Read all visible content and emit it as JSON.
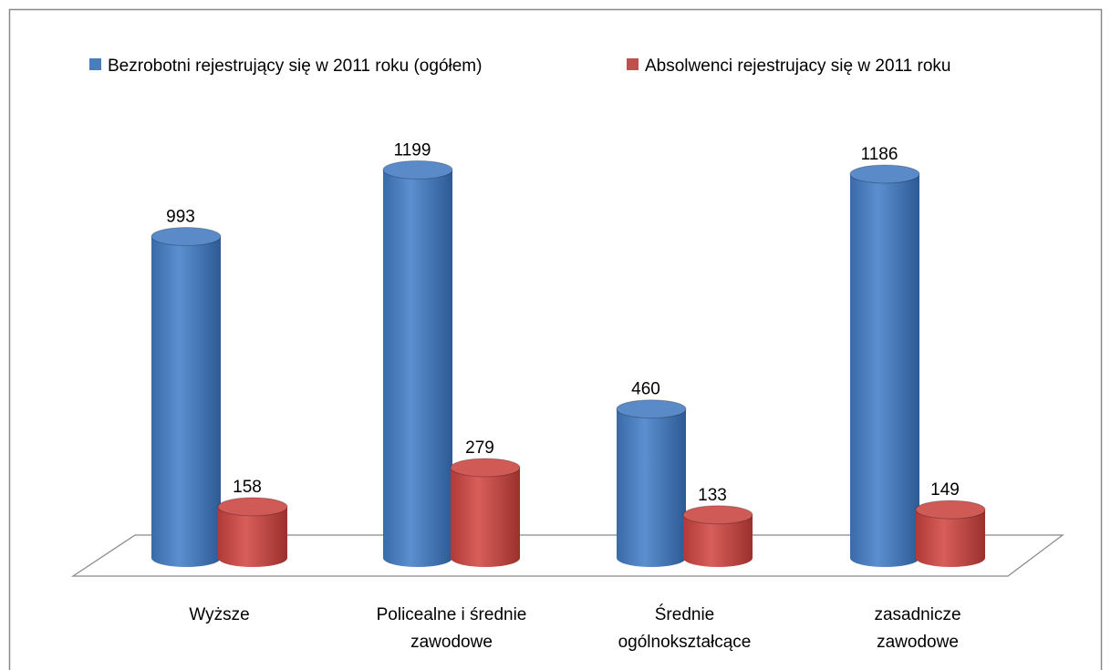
{
  "chart_data": {
    "type": "cylinder-bar",
    "categories": [
      "Wyższe",
      "Policealne i średnie\nzawodowe",
      "Średnie\nogólnokształcące",
      "zasadnicze\nzawodowe"
    ],
    "series": [
      {
        "name": "Bezrobotni rejestrujący się w 2011 roku (ogółem)",
        "color": "#4a7ebb",
        "values": [
          993,
          1199,
          460,
          1186
        ]
      },
      {
        "name": "Absolwenci rejestrujacy się w 2011 roku",
        "color": "#c0504d",
        "values": [
          158,
          279,
          133,
          149
        ]
      }
    ],
    "legend": "top"
  }
}
